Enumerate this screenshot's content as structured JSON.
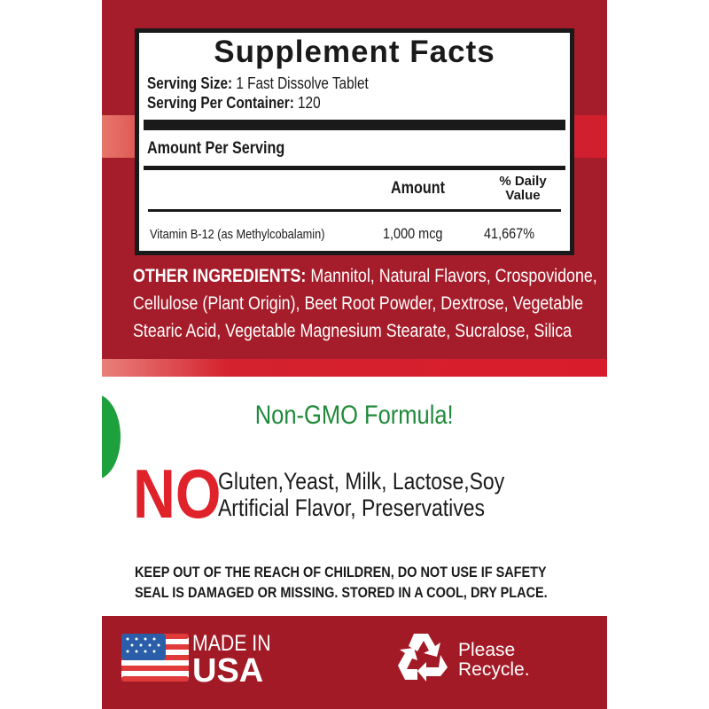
{
  "facts": {
    "title": "Supplement Facts",
    "serving_size_label": "Serving Size:",
    "serving_size_value": "1 Fast Dissolve Tablet",
    "servings_label": "Serving Per Container:",
    "servings_value": "120",
    "amount_per_serving": "Amount Per Serving",
    "col_amount": "Amount",
    "col_dv_1": "% Daily",
    "col_dv_2": "Value",
    "rows": [
      {
        "name": "Vitamin B-12 (as Methylcobalamin)",
        "amount": "1,000 mcg",
        "dv": "41,667%"
      }
    ]
  },
  "ingredients": {
    "label": "OTHER INGREDIENTS:",
    "line1": "Mannitol, Natural Flavors, Crospovidone,",
    "line2": "Cellulose (Plant Origin), Beet Root Powder, Dextrose, Vegetable",
    "line3": "Stearic Acid, Vegetable Magnesium Stearate, Sucralose, Silica"
  },
  "claims": {
    "non_gmo": "Non-GMO Formula!",
    "no": "NO",
    "free_line1": "Gluten,Yeast, Milk, Lactose,Soy",
    "free_line2": "Artificial Flavor, Preservatives"
  },
  "warning": {
    "line1": "KEEP OUT OF THE REACH OF CHILDREN, DO NOT USE IF SAFETY",
    "line2": "SEAL IS DAMAGED OR MISSING. STORED IN A COOL, DRY PLACE."
  },
  "footer": {
    "made_in": "MADE IN",
    "usa": "USA",
    "please": "Please",
    "recycle": "Recycle."
  },
  "colors": {
    "label_red": "#a51c2a",
    "green": "#1f8a3a",
    "no_red": "#e0222b"
  }
}
